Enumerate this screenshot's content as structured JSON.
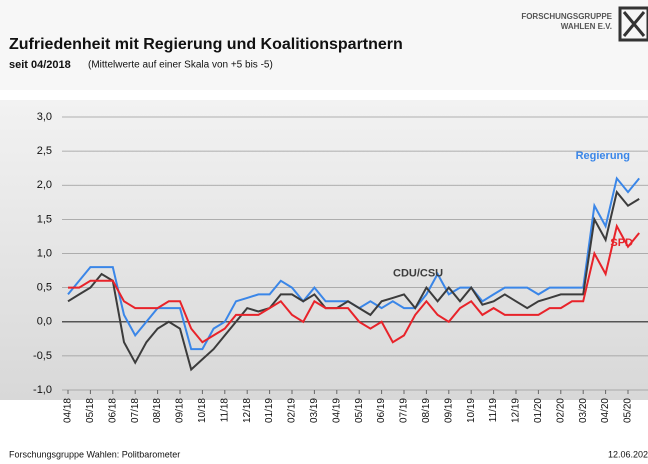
{
  "chart_data": {
    "type": "line",
    "title": "Zufriedenheit mit Regierung und Koalitionspartnern",
    "subtitle": "seit 04/2018",
    "subtitle_note": "(Mittelwerte auf einer Skala von +5 bis -5)",
    "logo": [
      "FORSCHUNGSGRUPPE",
      "WAHLEN E.V."
    ],
    "source": "Forschungsgruppe Wahlen: Politbarometer",
    "date": "12.06.202",
    "categories": [
      "04/18",
      null,
      "05/18",
      null,
      "06/18",
      null,
      "07/18",
      null,
      "08/18",
      null,
      "09/18",
      null,
      "10/18",
      null,
      "11/18",
      null,
      "12/18",
      null,
      "01/19",
      null,
      "02/19",
      null,
      "03/19",
      null,
      "04/19",
      null,
      "05/19",
      null,
      "06/19",
      null,
      "07/19",
      null,
      "08/19",
      null,
      "09/19",
      null,
      "10/19",
      null,
      "11/19",
      null,
      "12/19",
      null,
      "01/20",
      null,
      "02/20",
      null,
      "03/20",
      null,
      "04/20",
      null,
      "05/20",
      null
    ],
    "series": [
      {
        "name": "Regierung",
        "color": "#3a86e8",
        "values": [
          0.4,
          0.6,
          0.8,
          0.8,
          0.8,
          0.1,
          -0.2,
          0.0,
          0.2,
          0.2,
          0.2,
          -0.4,
          -0.4,
          -0.1,
          0.0,
          0.3,
          0.35,
          0.4,
          0.4,
          0.6,
          0.5,
          0.3,
          0.5,
          0.3,
          0.3,
          0.3,
          0.2,
          0.3,
          0.2,
          0.3,
          0.2,
          0.2,
          0.4,
          0.7,
          0.4,
          0.5,
          0.5,
          0.3,
          0.4,
          0.5,
          0.5,
          0.5,
          0.4,
          0.5,
          0.5,
          0.5,
          0.5,
          1.7,
          1.4,
          2.1,
          1.9,
          2.1
        ]
      },
      {
        "name": "CDU/CSU",
        "color": "#3c3c3c",
        "values": [
          0.3,
          0.4,
          0.5,
          0.7,
          0.6,
          -0.3,
          -0.6,
          -0.3,
          -0.1,
          0.0,
          -0.1,
          -0.7,
          -0.55,
          -0.4,
          -0.2,
          0.0,
          0.2,
          0.15,
          0.2,
          0.4,
          0.4,
          0.3,
          0.4,
          0.2,
          0.2,
          0.3,
          0.2,
          0.1,
          0.3,
          0.35,
          0.4,
          0.2,
          0.5,
          0.3,
          0.5,
          0.3,
          0.5,
          0.25,
          0.3,
          0.4,
          0.3,
          0.2,
          0.3,
          0.35,
          0.4,
          0.4,
          0.4,
          1.5,
          1.2,
          1.9,
          1.7,
          1.8
        ]
      },
      {
        "name": "SPD",
        "color": "#e8232a",
        "values": [
          0.5,
          0.5,
          0.6,
          0.6,
          0.6,
          0.3,
          0.2,
          0.2,
          0.2,
          0.3,
          0.3,
          -0.1,
          -0.3,
          -0.2,
          -0.1,
          0.1,
          0.1,
          0.1,
          0.2,
          0.3,
          0.1,
          0.0,
          0.3,
          0.2,
          0.2,
          0.2,
          0.0,
          -0.1,
          0.0,
          -0.3,
          -0.2,
          0.1,
          0.3,
          0.1,
          0.0,
          0.2,
          0.3,
          0.1,
          0.2,
          0.1,
          0.1,
          0.1,
          0.1,
          0.2,
          0.2,
          0.3,
          0.3,
          1.0,
          0.7,
          1.4,
          1.1,
          1.3
        ]
      }
    ],
    "ylim": [
      -1.0,
      3.0
    ],
    "yticks": [
      {
        "value": -1.0,
        "label": "-1,0"
      },
      {
        "value": -0.5,
        "label": "-0,5"
      },
      {
        "value": 0,
        "label": "0,0"
      },
      {
        "value": 0.5,
        "label": "0,5"
      },
      {
        "value": 1.0,
        "label": "1,0"
      },
      {
        "value": 1.5,
        "label": "1,5"
      },
      {
        "value": 2.0,
        "label": "2,0"
      },
      {
        "value": 2.5,
        "label": "2,5"
      },
      {
        "value": 3.0,
        "label": "3,0"
      }
    ],
    "grid": true
  }
}
